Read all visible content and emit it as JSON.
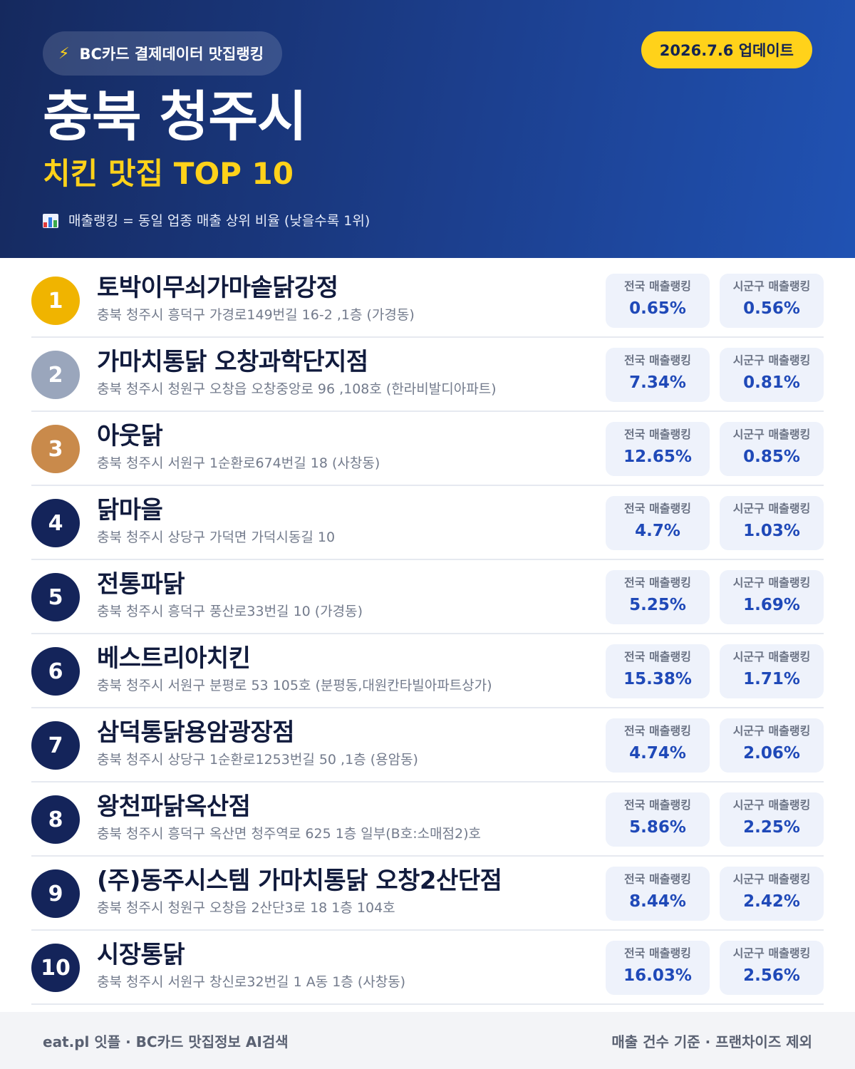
{
  "header": {
    "source_label": "BC카드 결제데이터 맛집랭킹",
    "update_label": "2026.7.6 업데이트",
    "region": "충북 청주시",
    "category_title": "치킨 맛집 TOP 10",
    "legend_note": "매출랭킹 = 동일 업종 매출 상위 비율 (낮을수록 1위)",
    "icons": [
      "bolt-icon",
      "bar-chart-icon"
    ]
  },
  "colors": {
    "header_bg": "#1c3f8e",
    "accent_yellow": "#ffd21a",
    "gold": "#f0b400",
    "silver": "#9aa6bc",
    "bronze": "#c98a4b",
    "navy": "#14245a",
    "value_blue": "#1f49b8"
  },
  "stat_labels": {
    "national": "전국 매출랭킹",
    "local": "시군구 매출랭킹"
  },
  "restaurants": [
    {
      "rank": "1",
      "name": "토박이무쇠가마솥닭강정",
      "address": "충북 청주시 흥덕구 가경로149번길 16-2 ,1층 (가경동)",
      "national": "0.65%",
      "local": "0.56%",
      "medal": "gold"
    },
    {
      "rank": "2",
      "name": "가마치통닭 오창과학단지점",
      "address": "충북 청주시 청원구 오창읍 오창중앙로 96 ,108호 (한라비발디아파트)",
      "national": "7.34%",
      "local": "0.81%",
      "medal": "silver"
    },
    {
      "rank": "3",
      "name": "아웃닭",
      "address": "충북 청주시 서원구 1순환로674번길 18 (사창동)",
      "national": "12.65%",
      "local": "0.85%",
      "medal": "bronze"
    },
    {
      "rank": "4",
      "name": "닭마을",
      "address": "충북 청주시 상당구 가덕면 가덕시동길 10",
      "national": "4.7%",
      "local": "1.03%",
      "medal": "navy"
    },
    {
      "rank": "5",
      "name": "전통파닭",
      "address": "충북 청주시 흥덕구 풍산로33번길 10 (가경동)",
      "national": "5.25%",
      "local": "1.69%",
      "medal": "navy"
    },
    {
      "rank": "6",
      "name": "베스트리아치킨",
      "address": "충북 청주시 서원구 분평로 53 105호 (분평동,대원칸타빌아파트상가)",
      "national": "15.38%",
      "local": "1.71%",
      "medal": "navy"
    },
    {
      "rank": "7",
      "name": "삼덕통닭용암광장점",
      "address": "충북 청주시 상당구 1순환로1253번길 50 ,1층 (용암동)",
      "national": "4.74%",
      "local": "2.06%",
      "medal": "navy"
    },
    {
      "rank": "8",
      "name": "왕천파닭옥산점",
      "address": "충북 청주시 흥덕구 옥산면 청주역로 625 1층 일부(B호:소매점2)호",
      "national": "5.86%",
      "local": "2.25%",
      "medal": "navy"
    },
    {
      "rank": "9",
      "name": "(주)동주시스템 가마치통닭 오창2산단점",
      "address": "충북 청주시 청원구 오창읍 2산단3로 18 1층 104호",
      "national": "8.44%",
      "local": "2.42%",
      "medal": "navy"
    },
    {
      "rank": "10",
      "name": "시장통닭",
      "address": "충북 청주시 서원구 창신로32번길 1 A동 1층 (사창동)",
      "national": "16.03%",
      "local": "2.56%",
      "medal": "navy"
    }
  ],
  "footer": {
    "left": "eat.pl 잇플 · BC카드 맛집정보 AI검색",
    "right": "매출 건수 기준 · 프랜차이즈 제외"
  }
}
